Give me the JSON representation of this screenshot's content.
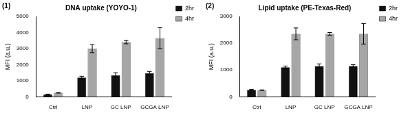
{
  "chart_data": [
    {
      "type": "bar",
      "title": "DNA uptake (YOYO-1)",
      "annotations": [
        "(1)"
      ],
      "y_label": "MFI (a.u.)",
      "categories": [
        "Ctrl",
        "LNP",
        "GC LNP",
        "GCGA LNP"
      ],
      "series": [
        {
          "name": "2hr",
          "color": "#111111",
          "values": [
            150,
            1200,
            1350,
            1480
          ],
          "errors": [
            20,
            80,
            150,
            100
          ]
        },
        {
          "name": "4hr",
          "color": "#a6a6a6",
          "values": [
            250,
            3000,
            3400,
            3650
          ],
          "errors": [
            20,
            250,
            100,
            650
          ]
        }
      ],
      "ylim": [
        0,
        5000
      ],
      "yticks": [
        0,
        1000,
        2000,
        3000,
        4000,
        5000
      ],
      "grid": false,
      "legend": "right"
    },
    {
      "type": "bar",
      "title": "Lipid uptake (PE-Texas-Red)",
      "annotations": [
        "(2)"
      ],
      "y_label": "MFI (a.u.)",
      "categories": [
        "Ctrl",
        "LNP",
        "GC LNP",
        "GCGA LNP"
      ],
      "series": [
        {
          "name": "2hr",
          "color": "#111111",
          "values": [
            260,
            1100,
            1150,
            1150
          ],
          "errors": [
            15,
            50,
            80,
            50
          ]
        },
        {
          "name": "4hr",
          "color": "#a6a6a6",
          "values": [
            250,
            2350,
            2350,
            2350
          ],
          "errors": [
            10,
            220,
            50,
            380
          ]
        }
      ],
      "ylim": [
        0,
        3000
      ],
      "yticks": [
        0,
        1000,
        2000,
        3000
      ],
      "grid": false,
      "legend": "right"
    }
  ]
}
